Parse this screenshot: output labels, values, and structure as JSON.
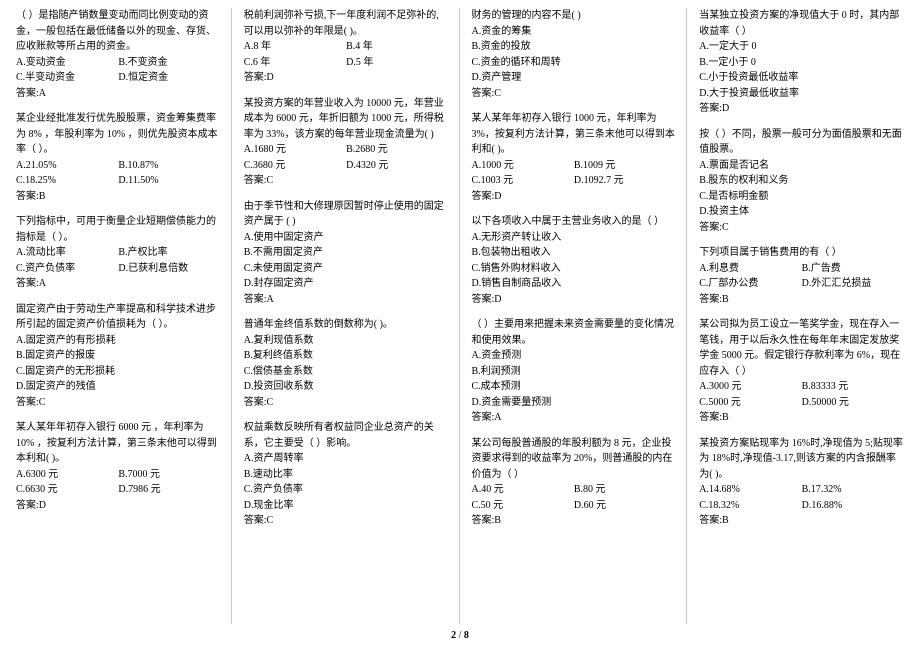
{
  "page": {
    "current": "2",
    "total": "8"
  },
  "columns": [
    [
      {
        "q": "（ ）是指随产销数量变动而同比例变动的资金，一般包括在最低储备以外的现金、存货、应收账款等所占用的资金。",
        "opts": [
          "A.变动资金",
          "B.不变资金",
          "C.半变动资金",
          "D.恒定资金"
        ],
        "ans": "答案:A"
      },
      {
        "q": "某企业经批准发行优先股股票，资金筹集费率为 8% ，年股利率为 10% ，则优先股资本成本率（ ）。",
        "opts": [
          "A.21.05%",
          "B.10.87%",
          "C.18.25%",
          "D.11.50%"
        ],
        "ans": "答案:B"
      },
      {
        "q": "下列指标中，可用于衡量企业短期偿债能力的指标是（ ）。",
        "opts": [
          "A.流动比率",
          "B.产权比率",
          "C.资产负债率",
          "D.已获利息倍数"
        ],
        "ans": "答案:A"
      },
      {
        "q": "固定资产由于劳动生产率提高和科学技术进步所引起的固定资产价值损耗为（ ）。",
        "opts": [
          "A.固定资产的有形损耗",
          "B.固定资产的报废",
          "C.固定资产的无形损耗",
          "D.固定资产的残值"
        ],
        "optsFull": true,
        "ans": "答案:C"
      },
      {
        "q": "某人某年年初存入银行 6000 元 ，年利率为 10% ，按复利方法计算，第三条末他可以得到本利和( )。",
        "opts": [
          "A.6300 元",
          "B.7000 元",
          "C.6630 元",
          "D.7986 元"
        ],
        "ans": "答案:D"
      }
    ],
    [
      {
        "q": "税前利润弥补亏损,下一年度利润不足弥补的,可以用以弥补的年限是( )。",
        "opts": [
          "A.8 年",
          "B.4 年",
          "C.6 年",
          "D.5 年"
        ],
        "ans": "答案:D"
      },
      {
        "q": "某投资方案的年营业收入为 10000 元，年营业成本为 6000 元，年折旧额为 1000 元，所得税率为 33%，该方案的每年营业现金流量为(  )",
        "opts": [
          "A.1680 元",
          "B.2680 元",
          "C.3680 元",
          "D.4320 元"
        ],
        "ans": "答案:C"
      },
      {
        "q": "由于季节性和大修理原因暂时停止使用的固定资产属于 (  )",
        "opts": [
          "A.使用中固定资产",
          "B.不需用固定资产",
          "C.未使用固定资产",
          "D.封存固定资产"
        ],
        "optsFull": true,
        "ans": "答案:A"
      },
      {
        "q": "普通年金终值系数的倒数称为( )。",
        "opts": [
          "A.复利现值系数",
          "B.复利终值系数",
          "C.偿债基金系数",
          "D.投资回收系数"
        ],
        "optsFull": true,
        "ans": "答案:C"
      },
      {
        "q": "权益乘数反映所有者权益同企业总资产的关系，它主要受（  ）影响。",
        "opts": [
          "A.资产周转率",
          "B.速动比率",
          "C.资产负债率",
          "D.现金比率"
        ],
        "optsFull": true,
        "ans": "答案:C"
      }
    ],
    [
      {
        "q": "财务的管理的内容不是( )",
        "opts": [
          "A.资金的筹集",
          "B.资金的投放",
          "C.资金的循环和周转",
          "D.资产管理"
        ],
        "optsFull": true,
        "ans": "答案:C"
      },
      {
        "q": "某人某年年初存入银行 1000 元，年利率为 3%，按复利方法计算，第三条末他可以得到本利和( )。",
        "opts": [
          "A.1000 元",
          "B.1009 元",
          "C.1003 元",
          "D.1092.7 元"
        ],
        "ans": "答案:D"
      },
      {
        "q": "以下各项收入中属于主营业务收入的是（  ）",
        "opts": [
          "A.无形资产转让收入",
          "B.包装物出租收入",
          "C.销售外购材料收入",
          "D.销售自制商品收入"
        ],
        "optsFull": true,
        "ans": "答案:D"
      },
      {
        "q": "（  ）主要用来把握未来资金需要量的变化情况和使用效果。",
        "opts": [
          "A.资金预测",
          "B.利润预测",
          "C.成本预测",
          "D.资金需要量预测"
        ],
        "optsFull": true,
        "ans": "答案:A"
      },
      {
        "q": "某公司每股普通股的年股利额为 8 元，企业投资要求得到的收益率为 20%，则普通股的内在价值为（  ）",
        "opts": [
          "A.40 元",
          "B.80 元",
          "C.50 元",
          "D.60 元"
        ],
        "ans": "答案:B"
      }
    ],
    [
      {
        "q": "当某独立投资方案的净现值大于 0 时，其内部收益率（  ）",
        "opts": [
          "A.一定大于 0",
          "B.一定小于 0",
          "C.小于投资最低收益率",
          "D.大于投资最低收益率"
        ],
        "optsFull": true,
        "ans": "答案:D"
      },
      {
        "q": "按（  ）不同，股票一般可分为面值股票和无面值股票。",
        "opts": [
          "A.票面是否记名",
          "B.股东的权利和义务",
          "C.是否标明金额",
          "D.投资主体"
        ],
        "optsFull": true,
        "ans": "答案:C"
      },
      {
        "q": "下列项目属于销售费用的有（  ）",
        "opts": [
          "A.利息费",
          "B.广告费",
          "C.厂部办公费",
          "D.外汇汇兑损益"
        ],
        "ans": "答案:B"
      },
      {
        "q": "某公司拟为员工设立一笔奖学金，现在存入一笔钱，用于以后永久性在每年年末固定发放奖学金 5000 元。假定银行存款利率为 6%，现在应存入（  ）",
        "opts": [
          "A.3000 元",
          "B.83333 元",
          "C.5000 元",
          "D.50000 元"
        ],
        "ans": "答案:B"
      },
      {
        "q": "某投资方案贴现率为 16%时,净现值为 5;贴现率为 18%时,净现值-3.17,则该方案的内含报酬率为( )。",
        "opts": [
          "A.14.68%",
          "B.17.32%",
          "C.18.32%",
          "D.16.88%"
        ],
        "ans": "答案:B"
      }
    ]
  ]
}
